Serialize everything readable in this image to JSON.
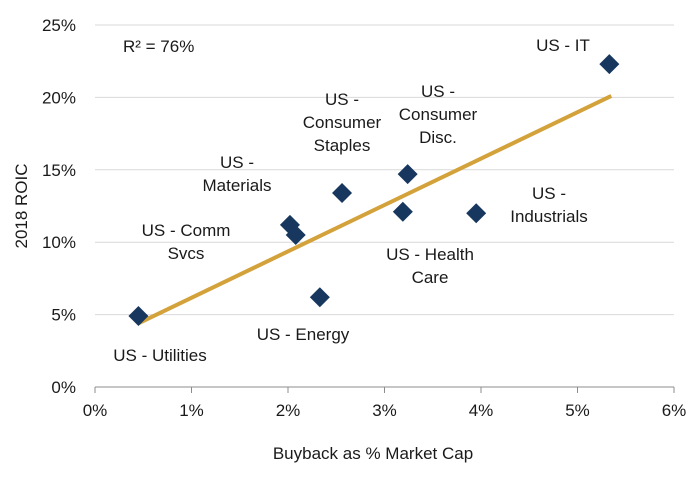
{
  "chart_data": {
    "type": "scatter",
    "title": "",
    "xlabel": "Buyback as % Market Cap",
    "ylabel": "2018 ROIC",
    "xlim": [
      0,
      6
    ],
    "ylim": [
      0,
      25
    ],
    "x_ticks": [
      {
        "value": 0,
        "label": "0%"
      },
      {
        "value": 1,
        "label": "1%"
      },
      {
        "value": 2,
        "label": "2%"
      },
      {
        "value": 3,
        "label": "3%"
      },
      {
        "value": 4,
        "label": "4%"
      },
      {
        "value": 5,
        "label": "5%"
      },
      {
        "value": 6,
        "label": "6%"
      }
    ],
    "y_ticks": [
      {
        "value": 0,
        "label": "0%"
      },
      {
        "value": 5,
        "label": "5%"
      },
      {
        "value": 10,
        "label": "10%"
      },
      {
        "value": 15,
        "label": "15%"
      },
      {
        "value": 20,
        "label": "20%"
      },
      {
        "value": 25,
        "label": "25%"
      }
    ],
    "grid": "horizontal",
    "annotation": "R² = 76%",
    "marker_color": "#17375e",
    "trendline_color": "#d4a23a",
    "trendline": {
      "x": [
        0.45,
        5.35
      ],
      "y": [
        4.4,
        20.1
      ]
    },
    "points": [
      {
        "label": [
          "US - Utilities"
        ],
        "x": 0.45,
        "y": 4.9
      },
      {
        "label": [
          "US - Comm",
          "Svcs"
        ],
        "x": 2.02,
        "y": 11.2
      },
      {
        "label": [
          "US - Materials"
        ],
        "x": 2.08,
        "y": 10.5
      },
      {
        "label": [
          "US - Energy"
        ],
        "x": 2.33,
        "y": 6.2
      },
      {
        "label": [
          "US -",
          "Consumer",
          "Staples"
        ],
        "x": 2.56,
        "y": 13.4
      },
      {
        "label": [
          "US - Health",
          "Care"
        ],
        "x": 3.19,
        "y": 12.1
      },
      {
        "label": [
          "US -",
          "Consumer",
          "Disc."
        ],
        "x": 3.24,
        "y": 14.7
      },
      {
        "label": [
          "US -",
          "Industrials"
        ],
        "x": 3.95,
        "y": 12.0
      },
      {
        "label": [
          "US - IT"
        ],
        "x": 5.33,
        "y": 22.3
      }
    ],
    "display_labels": [
      {
        "lines": [
          "US - Utilities"
        ]
      },
      {
        "lines": [
          "US - Comm",
          "Svcs"
        ]
      },
      {
        "lines": [
          "US -",
          "Materials"
        ]
      },
      {
        "lines": [
          "US - Energy"
        ]
      },
      {
        "lines": [
          "US -",
          "Consumer",
          "Staples"
        ]
      },
      {
        "lines": [
          "US - Health",
          "Care"
        ]
      },
      {
        "lines": [
          "US -",
          "Consumer",
          "Disc."
        ]
      },
      {
        "lines": [
          "US -",
          "Industrials"
        ]
      },
      {
        "lines": [
          "US - IT"
        ]
      }
    ]
  }
}
